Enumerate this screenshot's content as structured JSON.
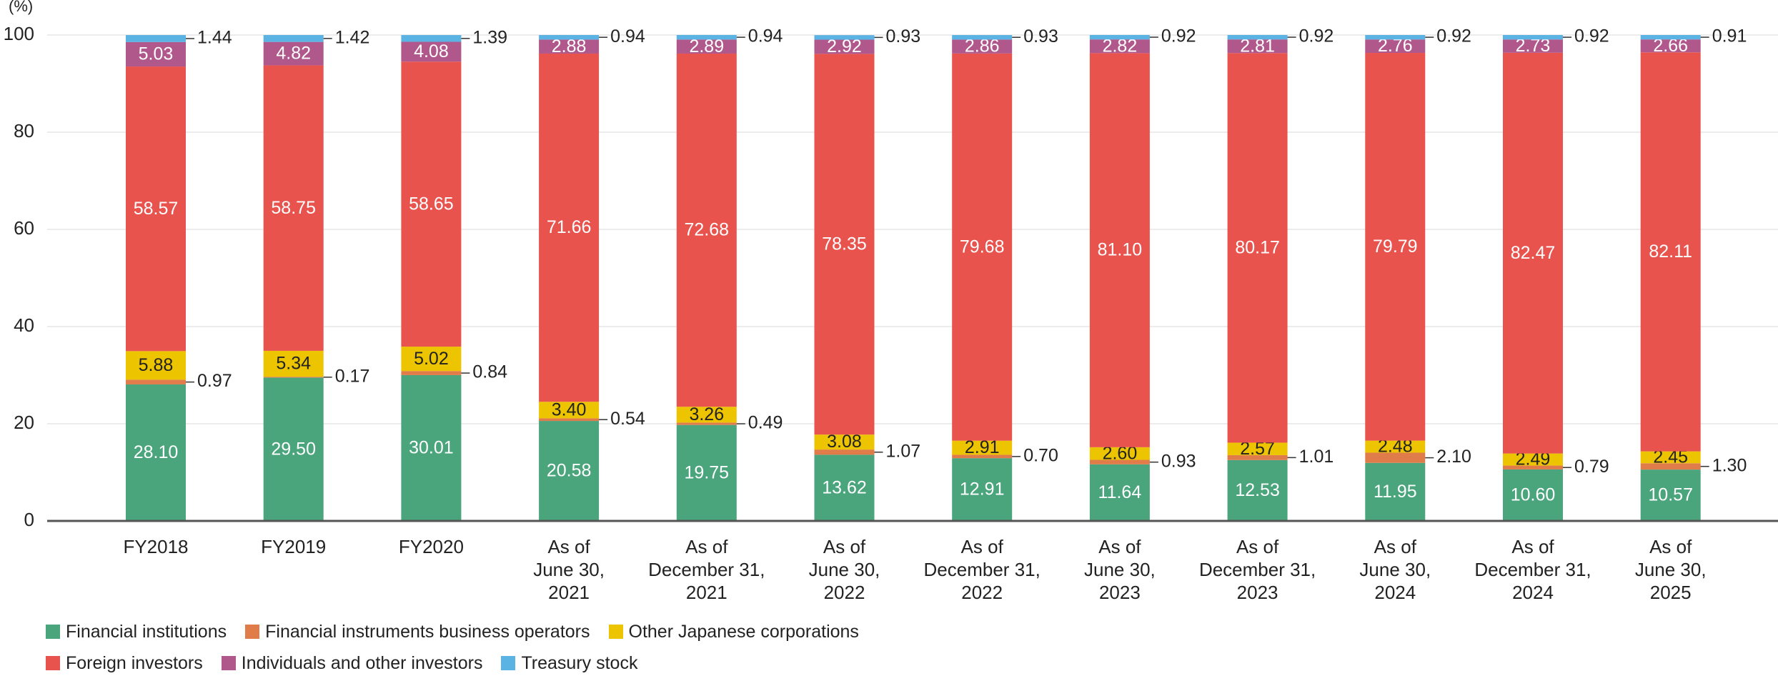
{
  "chart_data": {
    "type": "bar",
    "stacked": true,
    "y_unit_label": "(%)",
    "ylim": [
      0,
      100
    ],
    "yticks": [
      0,
      20,
      40,
      60,
      80,
      100
    ],
    "grid": true,
    "legend_position": "bottom-left",
    "categories": [
      [
        "FY2018"
      ],
      [
        "FY2019"
      ],
      [
        "FY2020"
      ],
      [
        "As of",
        "June 30,",
        "2021"
      ],
      [
        "As of",
        "December 31,",
        "2021"
      ],
      [
        "As of",
        "June 30,",
        "2022"
      ],
      [
        "As of",
        "December 31,",
        "2022"
      ],
      [
        "As of",
        "June 30,",
        "2023"
      ],
      [
        "As of",
        "December 31,",
        "2023"
      ],
      [
        "As of",
        "June 30,",
        "2024"
      ],
      [
        "As of",
        "December 31,",
        "2024"
      ],
      [
        "As of",
        "June 30,",
        "2025"
      ]
    ],
    "series": [
      {
        "name": "Financial institutions",
        "color": "#4aa57c",
        "label_color": "#ffffff",
        "values": [
          28.1,
          29.5,
          30.01,
          20.58,
          19.75,
          13.62,
          12.91,
          11.64,
          12.53,
          11.95,
          10.6,
          10.57
        ],
        "labels": [
          "28.10",
          "29.50",
          "30.01",
          "20.58",
          "19.75",
          "13.62",
          "12.91",
          "11.64",
          "12.53",
          "11.95",
          "10.60",
          "10.57"
        ],
        "label_mode": "inside"
      },
      {
        "name": "Financial instruments business operators",
        "color": "#e07b4a",
        "label_color": "#222222",
        "values": [
          0.97,
          0.17,
          0.84,
          0.54,
          0.49,
          1.07,
          0.7,
          0.93,
          1.01,
          2.1,
          0.79,
          1.3
        ],
        "labels": [
          "0.97",
          "0.17",
          "0.84",
          "0.54",
          "0.49",
          "1.07",
          "0.70",
          "0.93",
          "1.01",
          "2.10",
          "0.79",
          "1.30"
        ],
        "label_mode": "callout"
      },
      {
        "name": "Other Japanese corporations",
        "color": "#ecc400",
        "label_color": "#222222",
        "values": [
          5.88,
          5.34,
          5.02,
          3.4,
          3.26,
          3.08,
          2.91,
          2.6,
          2.57,
          2.48,
          2.49,
          2.45
        ],
        "labels": [
          "5.88",
          "5.34",
          "5.02",
          "3.40",
          "3.26",
          "3.08",
          "2.91",
          "2.60",
          "2.57",
          "2.48",
          "2.49",
          "2.45"
        ],
        "label_mode": "inside"
      },
      {
        "name": "Foreign investors",
        "color": "#e8534e",
        "label_color": "#ffffff",
        "values": [
          58.57,
          58.75,
          58.65,
          71.66,
          72.68,
          78.35,
          79.68,
          81.1,
          80.17,
          79.79,
          82.47,
          82.11
        ],
        "labels": [
          "58.57",
          "58.75",
          "58.65",
          "71.66",
          "72.68",
          "78.35",
          "79.68",
          "81.10",
          "80.17",
          "79.79",
          "82.47",
          "82.11"
        ],
        "label_mode": "inside"
      },
      {
        "name": "Individuals and other investors",
        "color": "#b0578b",
        "label_color": "#ffffff",
        "values": [
          5.03,
          4.82,
          4.08,
          2.88,
          2.89,
          2.92,
          2.86,
          2.82,
          2.81,
          2.76,
          2.73,
          2.66
        ],
        "labels": [
          "5.03",
          "4.82",
          "4.08",
          "2.88",
          "2.89",
          "2.92",
          "2.86",
          "2.82",
          "2.81",
          "2.76",
          "2.73",
          "2.66"
        ],
        "label_mode": "inside"
      },
      {
        "name": "Treasury stock",
        "color": "#5bb3e3",
        "label_color": "#222222",
        "values": [
          1.44,
          1.42,
          1.39,
          0.94,
          0.94,
          0.93,
          0.93,
          0.92,
          0.92,
          0.92,
          0.92,
          0.91
        ],
        "labels": [
          "1.44",
          "1.42",
          "1.39",
          "0.94",
          "0.94",
          "0.93",
          "0.93",
          "0.92",
          "0.92",
          "0.92",
          "0.92",
          "0.91"
        ],
        "label_mode": "callout"
      }
    ]
  }
}
